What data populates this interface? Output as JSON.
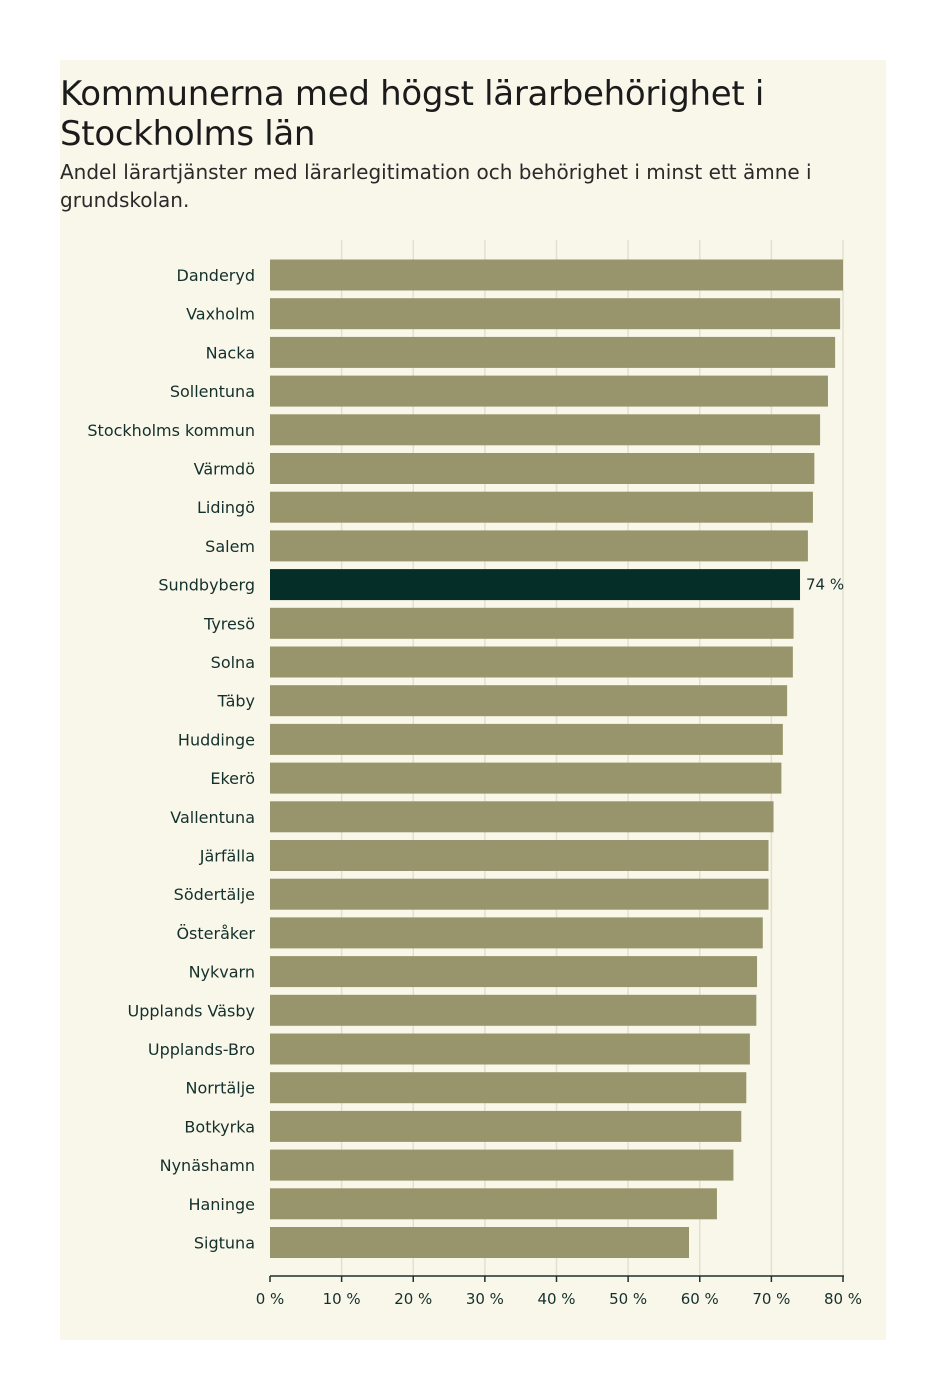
{
  "chart_data": {
    "type": "bar",
    "orientation": "horizontal",
    "title": "Kommunerna med högst lärarbehörighet i Stockholms län",
    "subtitle": "Andel lärartjänster med lärarlegitimation och behörighet i minst ett ämne i grundskolan.",
    "categories": [
      "Danderyd",
      "Vaxholm",
      "Nacka",
      "Sollentuna",
      "Stockholms kommun",
      "Värmdö",
      "Lidingö",
      "Salem",
      "Sundbyberg",
      "Tyresö",
      "Solna",
      "Täby",
      "Huddinge",
      "Ekerö",
      "Vallentuna",
      "Järfälla",
      "Södertälje",
      "Österåker",
      "Nykvarn",
      "Upplands Väsby",
      "Upplands-Bro",
      "Norrtälje",
      "Botkyrka",
      "Nynäshamn",
      "Haninge",
      "Sigtuna"
    ],
    "values": [
      80,
      79.6,
      78.9,
      77.9,
      76.8,
      76.0,
      75.8,
      75.1,
      74,
      73.1,
      73.0,
      72.2,
      71.6,
      71.4,
      70.3,
      69.6,
      69.6,
      68.8,
      68.0,
      67.9,
      67.0,
      66.5,
      65.8,
      64.7,
      62.4,
      58.5
    ],
    "highlight": "Sundbyberg",
    "highlight_label": "74 %",
    "xlim": [
      0,
      80
    ],
    "xticks": [
      0,
      10,
      20,
      30,
      40,
      50,
      60,
      70,
      80
    ],
    "xtick_labels": [
      "0 %",
      "10 %",
      "20 %",
      "30 %",
      "40 %",
      "50 %",
      "60 %",
      "70 %",
      "80 %"
    ],
    "grid": true,
    "colors": {
      "bar": "#98946c",
      "highlight": "#062e29",
      "grid": "#e3e0d0",
      "axis": "#1e2f2c",
      "text": "#14302c"
    }
  }
}
